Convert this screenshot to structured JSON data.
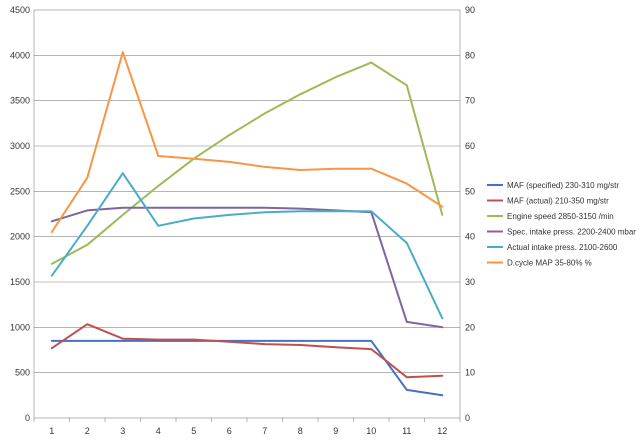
{
  "chart_data": {
    "type": "line",
    "categories": [
      "1",
      "2",
      "3",
      "4",
      "5",
      "6",
      "7",
      "8",
      "9",
      "10",
      "11",
      "12"
    ],
    "y_left": {
      "min": 0,
      "max": 4500,
      "step": 500,
      "ticks": [
        "0",
        "500",
        "1000",
        "1500",
        "2000",
        "2500",
        "3000",
        "3500",
        "4000",
        "4500"
      ]
    },
    "y_right": {
      "min": 0,
      "max": 90,
      "step": 10,
      "ticks": [
        "0",
        "10",
        "20",
        "30",
        "40",
        "50",
        "60",
        "70",
        "80",
        "90"
      ]
    },
    "grid": "horizontal",
    "legend_position": "right",
    "series": [
      {
        "name": "MAF (specified) 230-310  mg/str",
        "axis": "left",
        "color": "#4472C4",
        "values": [
          850,
          850,
          850,
          850,
          850,
          850,
          850,
          850,
          850,
          850,
          310,
          250
        ]
      },
      {
        "name": "MAF (actual) 210-350  mg/str",
        "axis": "left",
        "color": "#C0504D",
        "values": [
          770,
          1035,
          875,
          865,
          865,
          840,
          815,
          805,
          780,
          760,
          450,
          465
        ]
      },
      {
        "name": "Engine speed 2850-3150  /min",
        "axis": "left",
        "color": "#9BBB59",
        "values": [
          1700,
          1910,
          2240,
          2560,
          2860,
          3120,
          3360,
          3570,
          3760,
          3920,
          3670,
          2240
        ]
      },
      {
        "name": "Spec. intake press.  2200-2400  mbar",
        "axis": "left",
        "color": "#8064A2",
        "values": [
          2170,
          2290,
          2320,
          2320,
          2320,
          2320,
          2320,
          2310,
          2290,
          2270,
          1060,
          1000
        ]
      },
      {
        "name": "Actual intake press.  2100-2600",
        "axis": "left",
        "color": "#4BACC6",
        "values": [
          1570,
          2120,
          2700,
          2120,
          2200,
          2240,
          2270,
          2280,
          2280,
          2280,
          1930,
          1100
        ]
      },
      {
        "name": "D.cycle MAP 35-80% %",
        "axis": "right",
        "color": "#F79646",
        "values": [
          41,
          53,
          80.7,
          57.8,
          57.2,
          56.5,
          55.4,
          54.7,
          55,
          55,
          51.7,
          46.6
        ]
      }
    ]
  }
}
